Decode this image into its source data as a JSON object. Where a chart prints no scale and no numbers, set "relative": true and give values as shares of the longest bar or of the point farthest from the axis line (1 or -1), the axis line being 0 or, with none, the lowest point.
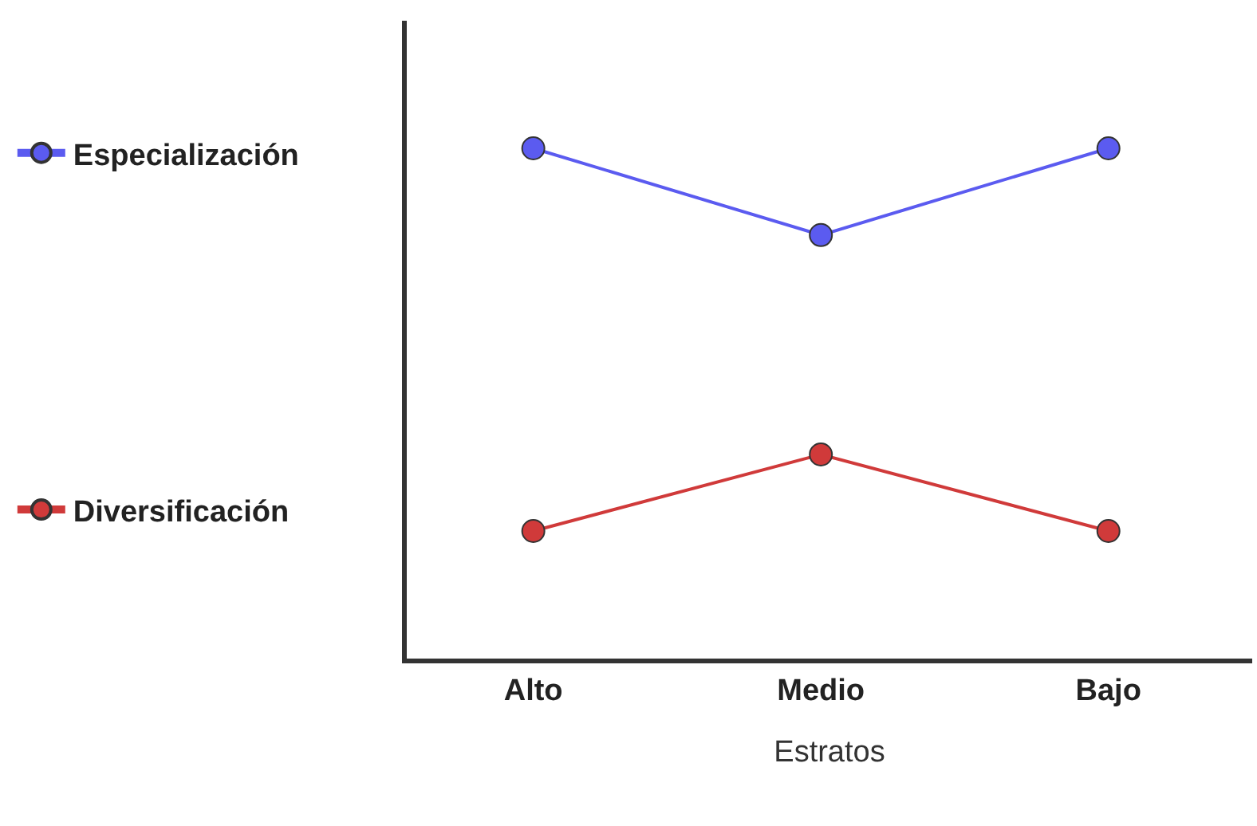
{
  "chart_data": {
    "type": "line",
    "relative": true,
    "xlabel": "Estratos",
    "categories": [
      "Alto",
      "Medio",
      "Bajo"
    ],
    "legend": "left",
    "marker": "circle",
    "grid": false,
    "series": [
      {
        "name": "Especialización",
        "color": "#5b5bf0",
        "values": [
          1,
          0.83,
          1
        ]
      },
      {
        "name": "Diversificación",
        "color": "#d03a3a",
        "values": [
          0.25,
          0.4,
          0.25
        ]
      }
    ]
  }
}
